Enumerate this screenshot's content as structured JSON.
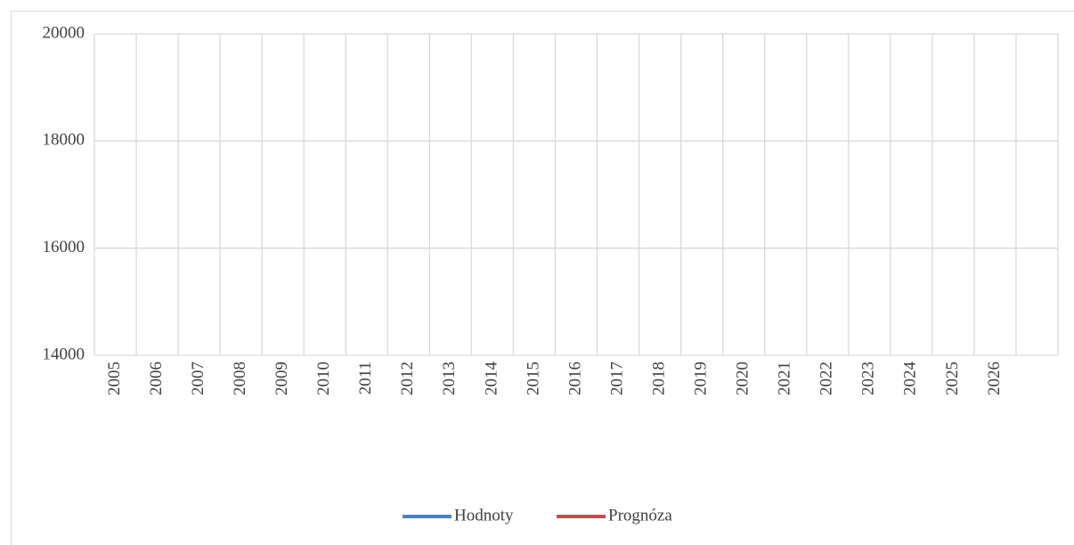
{
  "chart_data": {
    "type": "line",
    "categories": [
      "2005",
      "2006",
      "2007",
      "2008",
      "2009",
      "2010",
      "2011",
      "2012",
      "2013",
      "2014",
      "2015",
      "2016",
      "2017",
      "2018",
      "2019",
      "2020",
      "2021",
      "2022",
      "2023",
      "2024",
      "2025",
      "2026",
      null
    ],
    "series": [
      {
        "name": "Hodnoty",
        "color": "#4f81bd",
        "values": [
          null,
          null,
          null,
          null,
          null,
          null,
          null,
          null,
          null,
          null,
          null,
          null,
          null,
          null,
          null,
          null,
          null,
          null,
          null,
          null,
          null,
          null,
          null
        ]
      },
      {
        "name": "Prognóza",
        "color": "#c0504d",
        "values": [
          null,
          null,
          null,
          null,
          null,
          null,
          null,
          null,
          null,
          null,
          null,
          null,
          null,
          null,
          null,
          null,
          null,
          null,
          null,
          null,
          null,
          null,
          null
        ]
      }
    ],
    "ylim": [
      14000,
      20000
    ],
    "yticks": [
      14000,
      16000,
      18000,
      20000
    ],
    "grid": true,
    "legend": "bottom"
  }
}
